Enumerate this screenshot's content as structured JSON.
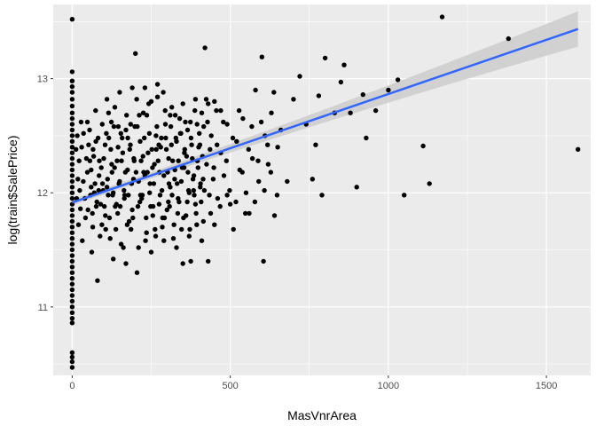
{
  "chart_data": {
    "type": "scatter",
    "xlabel": "MasVnrArea",
    "ylabel": "log(train$SalePrice)",
    "xlim": [
      -60,
      1640
    ],
    "ylim": [
      10.4,
      13.65
    ],
    "x_ticks": [
      0,
      500,
      1000,
      1500
    ],
    "y_ticks": [
      11,
      12,
      13
    ],
    "grid": true,
    "colors": {
      "panel_background": "#ebebeb",
      "grid": "#ffffff",
      "points": "#000000",
      "fit_line": "#3366ff",
      "confidence_band": "#cccccc"
    },
    "fit": {
      "method": "lm",
      "intercept": 11.915,
      "slope": 0.00095,
      "x_range": [
        0,
        1600
      ],
      "band_half_width_at_0": 0.025,
      "band_half_width_at_1600": 0.155
    },
    "points": [
      [
        0,
        13.52
      ],
      [
        0,
        13.06
      ],
      [
        0,
        12.98
      ],
      [
        0,
        12.93
      ],
      [
        0,
        12.88
      ],
      [
        0,
        12.82
      ],
      [
        0,
        12.76
      ],
      [
        0,
        12.7
      ],
      [
        0,
        12.65
      ],
      [
        0,
        12.6
      ],
      [
        0,
        12.55
      ],
      [
        0,
        12.5
      ],
      [
        0,
        12.45
      ],
      [
        0,
        12.4
      ],
      [
        0,
        12.35
      ],
      [
        0,
        12.3
      ],
      [
        0,
        12.25
      ],
      [
        0,
        12.2
      ],
      [
        0,
        12.15
      ],
      [
        0,
        12.1
      ],
      [
        0,
        12.05
      ],
      [
        0,
        12.0
      ],
      [
        0,
        11.95
      ],
      [
        0,
        11.9
      ],
      [
        0,
        11.85
      ],
      [
        0,
        11.8
      ],
      [
        0,
        11.75
      ],
      [
        0,
        11.7
      ],
      [
        0,
        11.65
      ],
      [
        0,
        11.6
      ],
      [
        0,
        11.55
      ],
      [
        0,
        11.5
      ],
      [
        0,
        11.45
      ],
      [
        0,
        11.4
      ],
      [
        0,
        11.35
      ],
      [
        0,
        11.3
      ],
      [
        0,
        11.25
      ],
      [
        0,
        11.2
      ],
      [
        0,
        11.15
      ],
      [
        0,
        11.1
      ],
      [
        0,
        11.05
      ],
      [
        0,
        11.0
      ],
      [
        0,
        10.95
      ],
      [
        0,
        10.9
      ],
      [
        0,
        10.86
      ],
      [
        0,
        10.6
      ],
      [
        0,
        10.56
      ],
      [
        0,
        10.52
      ],
      [
        0,
        10.47
      ],
      [
        30,
        12.4
      ],
      [
        35,
        12.1
      ],
      [
        40,
        11.95
      ],
      [
        45,
        12.3
      ],
      [
        50,
        11.85
      ],
      [
        55,
        12.55
      ],
      [
        60,
        12.2
      ],
      [
        65,
        11.7
      ],
      [
        70,
        12.0
      ],
      [
        75,
        12.45
      ],
      [
        80,
        11.23
      ],
      [
        85,
        12.15
      ],
      [
        90,
        11.9
      ],
      [
        95,
        12.6
      ],
      [
        100,
        12.3
      ],
      [
        105,
        11.8
      ],
      [
        110,
        12.05
      ],
      [
        115,
        12.7
      ],
      [
        120,
        11.6
      ],
      [
        125,
        12.25
      ],
      [
        130,
        12.0
      ],
      [
        135,
        12.75
      ],
      [
        140,
        11.9
      ],
      [
        145,
        12.4
      ],
      [
        150,
        12.1
      ],
      [
        155,
        11.55
      ],
      [
        160,
        12.35
      ],
      [
        165,
        11.95
      ],
      [
        170,
        12.55
      ],
      [
        175,
        12.2
      ],
      [
        180,
        11.75
      ],
      [
        185,
        12.6
      ],
      [
        190,
        11.85
      ],
      [
        195,
        12.3
      ],
      [
        200,
        13.22
      ],
      [
        205,
        11.3
      ],
      [
        210,
        12.1
      ],
      [
        215,
        12.45
      ],
      [
        220,
        11.95
      ],
      [
        225,
        12.7
      ],
      [
        230,
        12.15
      ],
      [
        235,
        11.65
      ],
      [
        240,
        12.35
      ],
      [
        245,
        12.0
      ],
      [
        250,
        12.8
      ],
      [
        255,
        11.8
      ],
      [
        260,
        12.25
      ],
      [
        265,
        12.5
      ],
      [
        270,
        12.95
      ],
      [
        275,
        11.9
      ],
      [
        280,
        12.4
      ],
      [
        285,
        11.7
      ],
      [
        290,
        12.15
      ],
      [
        295,
        12.6
      ],
      [
        300,
        11.85
      ],
      [
        305,
        12.3
      ],
      [
        310,
        12.05
      ],
      [
        315,
        12.75
      ],
      [
        320,
        11.6
      ],
      [
        325,
        12.2
      ],
      [
        330,
        12.45
      ],
      [
        335,
        11.95
      ],
      [
        340,
        12.65
      ],
      [
        345,
        12.1
      ],
      [
        350,
        11.38
      ],
      [
        355,
        12.35
      ],
      [
        360,
        11.8
      ],
      [
        365,
        12.55
      ],
      [
        370,
        12.0
      ],
      [
        375,
        11.4
      ],
      [
        380,
        12.3
      ],
      [
        385,
        12.15
      ],
      [
        390,
        11.9
      ],
      [
        395,
        12.6
      ],
      [
        400,
        12.4
      ],
      [
        405,
        12.05
      ],
      [
        410,
        12.7
      ],
      [
        415,
        11.75
      ],
      [
        420,
        13.27
      ],
      [
        425,
        12.25
      ],
      [
        430,
        11.4
      ],
      [
        440,
        12.5
      ],
      [
        450,
        12.8
      ],
      [
        460,
        11.95
      ],
      [
        470,
        12.35
      ],
      [
        480,
        12.15
      ],
      [
        490,
        12.6
      ],
      [
        500,
        11.9
      ],
      [
        510,
        11.68
      ],
      [
        520,
        12.45
      ],
      [
        530,
        12.2
      ],
      [
        540,
        12.65
      ],
      [
        550,
        12.0
      ],
      [
        560,
        11.82
      ],
      [
        570,
        12.3
      ],
      [
        580,
        12.9
      ],
      [
        590,
        12.1
      ],
      [
        600,
        13.19
      ],
      [
        605,
        11.4
      ],
      [
        610,
        12.5
      ],
      [
        620,
        12.25
      ],
      [
        630,
        12.7
      ],
      [
        640,
        11.8
      ],
      [
        650,
        12.4
      ],
      [
        660,
        12.55
      ],
      [
        680,
        12.1
      ],
      [
        700,
        12.82
      ],
      [
        720,
        13.02
      ],
      [
        740,
        12.6
      ],
      [
        760,
        12.12
      ],
      [
        770,
        12.42
      ],
      [
        780,
        12.85
      ],
      [
        790,
        11.98
      ],
      [
        800,
        13.18
      ],
      [
        830,
        12.7
      ],
      [
        850,
        12.97
      ],
      [
        860,
        13.12
      ],
      [
        880,
        12.7
      ],
      [
        900,
        12.05
      ],
      [
        920,
        12.86
      ],
      [
        930,
        12.48
      ],
      [
        960,
        12.72
      ],
      [
        1000,
        12.9
      ],
      [
        1030,
        12.99
      ],
      [
        1050,
        11.98
      ],
      [
        1110,
        12.41
      ],
      [
        1130,
        12.08
      ],
      [
        1170,
        13.54
      ],
      [
        1380,
        13.35
      ],
      [
        1600,
        12.38
      ],
      [
        12,
        12.38
      ],
      [
        14,
        11.95
      ],
      [
        16,
        12.5
      ],
      [
        18,
        12.12
      ],
      [
        20,
        11.72
      ],
      [
        22,
        12.28
      ],
      [
        24,
        12.02
      ],
      [
        26,
        11.86
      ],
      [
        28,
        12.62
      ],
      [
        32,
        11.58
      ],
      [
        36,
        12.52
      ],
      [
        42,
        11.78
      ],
      [
        48,
        12.18
      ],
      [
        52,
        12.42
      ],
      [
        58,
        11.98
      ],
      [
        62,
        11.48
      ],
      [
        68,
        12.32
      ],
      [
        72,
        12.08
      ],
      [
        78,
        11.92
      ],
      [
        82,
        12.48
      ],
      [
        88,
        11.62
      ],
      [
        92,
        12.22
      ],
      [
        98,
        12.02
      ],
      [
        102,
        11.88
      ],
      [
        108,
        12.52
      ],
      [
        112,
        12.12
      ],
      [
        118,
        11.78
      ],
      [
        122,
        12.38
      ],
      [
        128,
        11.98
      ],
      [
        132,
        12.58
      ],
      [
        138,
        11.68
      ],
      [
        142,
        12.28
      ],
      [
        148,
        12.08
      ],
      [
        152,
        11.88
      ],
      [
        158,
        12.48
      ],
      [
        162,
        11.52
      ],
      [
        168,
        12.18
      ],
      [
        172,
        12.68
      ],
      [
        178,
        11.98
      ],
      [
        182,
        12.38
      ],
      [
        188,
        12.08
      ],
      [
        192,
        11.78
      ],
      [
        198,
        12.58
      ],
      [
        202,
        12.18
      ],
      [
        208,
        11.88
      ],
      [
        212,
        12.68
      ],
      [
        218,
        12.28
      ],
      [
        222,
        11.98
      ],
      [
        228,
        12.48
      ],
      [
        232,
        11.58
      ],
      [
        238,
        12.18
      ],
      [
        242,
        12.78
      ],
      [
        248,
        11.88
      ],
      [
        252,
        12.38
      ],
      [
        258,
        12.08
      ],
      [
        262,
        11.68
      ],
      [
        268,
        12.58
      ],
      [
        272,
        12.28
      ],
      [
        278,
        11.98
      ],
      [
        282,
        12.48
      ],
      [
        288,
        12.88
      ],
      [
        292,
        11.78
      ],
      [
        298,
        12.38
      ],
      [
        302,
        12.18
      ],
      [
        308,
        11.88
      ],
      [
        312,
        12.58
      ],
      [
        318,
        12.28
      ],
      [
        322,
        11.72
      ],
      [
        328,
        12.48
      ],
      [
        332,
        12.08
      ],
      [
        338,
        11.92
      ],
      [
        342,
        12.52
      ],
      [
        348,
        12.22
      ],
      [
        352,
        11.78
      ],
      [
        358,
        12.62
      ],
      [
        362,
        12.32
      ],
      [
        368,
        12.02
      ],
      [
        372,
        11.68
      ],
      [
        378,
        12.42
      ],
      [
        382,
        12.12
      ],
      [
        388,
        12.72
      ],
      [
        392,
        11.82
      ],
      [
        398,
        12.22
      ],
      [
        402,
        12.52
      ],
      [
        408,
        11.92
      ],
      [
        412,
        12.32
      ],
      [
        418,
        12.02
      ],
      [
        428,
        12.62
      ],
      [
        438,
        11.82
      ],
      [
        448,
        12.22
      ],
      [
        458,
        12.42
      ],
      [
        468,
        11.88
      ],
      [
        478,
        12.62
      ],
      [
        488,
        12.28
      ],
      [
        498,
        12.02
      ],
      [
        508,
        12.48
      ],
      [
        518,
        11.92
      ],
      [
        528,
        12.72
      ],
      [
        538,
        12.18
      ],
      [
        548,
        11.82
      ],
      [
        558,
        12.38
      ],
      [
        568,
        12.58
      ],
      [
        578,
        11.92
      ],
      [
        588,
        12.28
      ],
      [
        598,
        12.62
      ],
      [
        608,
        12.02
      ],
      [
        618,
        12.42
      ],
      [
        628,
        12.18
      ],
      [
        638,
        12.88
      ],
      [
        648,
        11.98
      ],
      [
        48,
        12.62
      ],
      [
        56,
        12.28
      ],
      [
        64,
        11.82
      ],
      [
        74,
        12.72
      ],
      [
        84,
        12.02
      ],
      [
        94,
        11.72
      ],
      [
        104,
        12.42
      ],
      [
        114,
        11.98
      ],
      [
        124,
        12.62
      ],
      [
        134,
        12.22
      ],
      [
        144,
        11.82
      ],
      [
        154,
        12.52
      ],
      [
        164,
        12.02
      ],
      [
        174,
        11.72
      ],
      [
        184,
        12.42
      ],
      [
        194,
        12.12
      ],
      [
        204,
        12.82
      ],
      [
        214,
        11.92
      ],
      [
        224,
        12.32
      ],
      [
        234,
        11.78
      ],
      [
        244,
        12.52
      ],
      [
        254,
        12.22
      ],
      [
        264,
        11.62
      ],
      [
        274,
        12.42
      ],
      [
        284,
        12.02
      ],
      [
        294,
        12.72
      ],
      [
        304,
        11.92
      ],
      [
        314,
        12.42
      ],
      [
        324,
        12.12
      ],
      [
        334,
        11.82
      ],
      [
        344,
        12.52
      ],
      [
        354,
        12.22
      ],
      [
        364,
        11.92
      ],
      [
        374,
        12.62
      ],
      [
        384,
        12.02
      ],
      [
        394,
        11.72
      ],
      [
        404,
        12.42
      ],
      [
        414,
        12.12
      ],
      [
        424,
        12.82
      ],
      [
        434,
        11.98
      ],
      [
        60,
        12.05
      ],
      [
        66,
        12.38
      ],
      [
        76,
        11.88
      ],
      [
        86,
        12.28
      ],
      [
        96,
        12.08
      ],
      [
        106,
        11.68
      ],
      [
        116,
        12.48
      ],
      [
        126,
        12.18
      ],
      [
        136,
        11.88
      ],
      [
        146,
        12.58
      ],
      [
        156,
        12.28
      ],
      [
        166,
        11.98
      ],
      [
        176,
        12.48
      ],
      [
        186,
        11.68
      ],
      [
        196,
        12.28
      ],
      [
        206,
        12.58
      ],
      [
        216,
        11.98
      ],
      [
        226,
        12.18
      ],
      [
        236,
        12.68
      ],
      [
        246,
        12.08
      ],
      [
        256,
        11.88
      ],
      [
        266,
        12.38
      ],
      [
        276,
        12.18
      ],
      [
        286,
        11.78
      ],
      [
        296,
        12.48
      ],
      [
        306,
        12.08
      ],
      [
        316,
        11.98
      ],
      [
        326,
        12.68
      ],
      [
        336,
        12.28
      ],
      [
        346,
        11.68
      ],
      [
        356,
        12.38
      ],
      [
        366,
        12.18
      ],
      [
        376,
        12.48
      ],
      [
        386,
        11.98
      ],
      [
        396,
        12.28
      ],
      [
        406,
        12.08
      ],
      [
        416,
        12.58
      ],
      [
        436,
        12.38
      ],
      [
        446,
        12.12
      ],
      [
        456,
        12.72
      ],
      [
        110,
        12.82
      ],
      [
        130,
        11.42
      ],
      [
        150,
        12.88
      ],
      [
        170,
        11.38
      ],
      [
        190,
        12.92
      ],
      [
        210,
        11.52
      ],
      [
        230,
        12.92
      ],
      [
        250,
        11.48
      ],
      [
        270,
        12.84
      ],
      [
        290,
        11.58
      ],
      [
        310,
        12.68
      ],
      [
        330,
        11.52
      ],
      [
        350,
        12.78
      ],
      [
        370,
        11.62
      ],
      [
        390,
        12.82
      ],
      [
        410,
        11.58
      ],
      [
        430,
        12.78
      ],
      [
        450,
        11.72
      ],
      [
        470,
        12.72
      ],
      [
        490,
        11.98
      ]
    ]
  }
}
